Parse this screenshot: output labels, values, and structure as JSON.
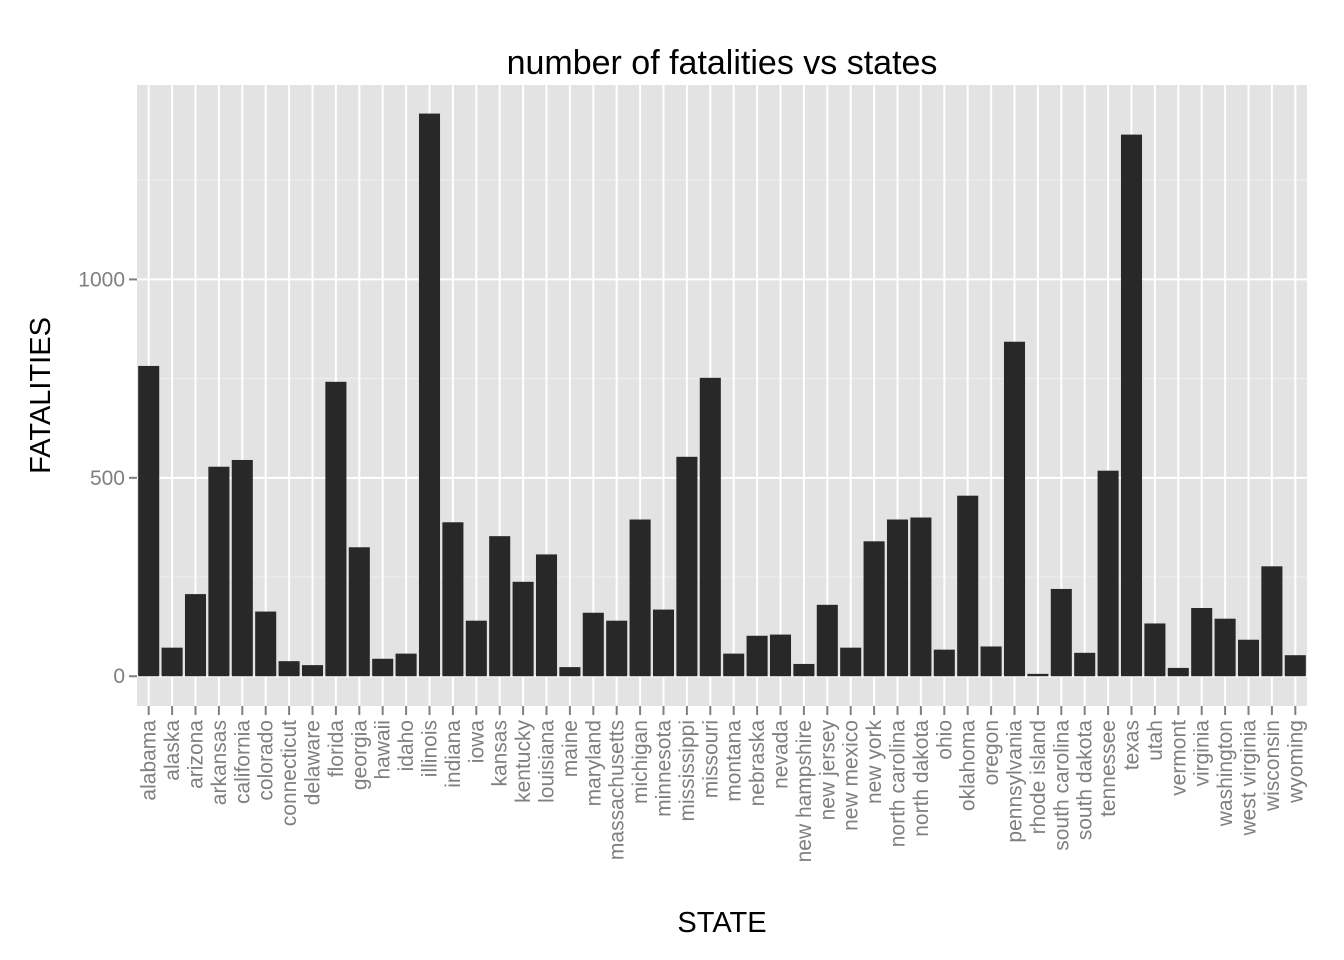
{
  "chart_data": {
    "type": "bar",
    "title": "number of fatalities vs states",
    "xlabel": "STATE",
    "ylabel": "FATALITIES",
    "ylim": [
      -75,
      1490
    ],
    "yticks": [
      0,
      500,
      1000
    ],
    "grid": true,
    "background": "#e3e3e3",
    "bar_color": "#282828",
    "categories": [
      "alabama",
      "alaska",
      "arizona",
      "arkansas",
      "california",
      "colorado",
      "connecticut",
      "delaware",
      "florida",
      "georgia",
      "hawaii",
      "idaho",
      "illinois",
      "indiana",
      "iowa",
      "kansas",
      "kentucky",
      "louisiana",
      "maine",
      "maryland",
      "massachusetts",
      "michigan",
      "minnesota",
      "mississippi",
      "missouri",
      "montana",
      "nebraska",
      "nevada",
      "new hampshire",
      "new jersey",
      "new mexico",
      "new york",
      "north carolina",
      "north dakota",
      "ohio",
      "oklahoma",
      "oregon",
      "pennsylvania",
      "rhode island",
      "south carolina",
      "south dakota",
      "tennessee",
      "texas",
      "utah",
      "vermont",
      "virginia",
      "washington",
      "west virginia",
      "wisconsin",
      "wyoming"
    ],
    "values": [
      782,
      72,
      207,
      528,
      545,
      163,
      38,
      28,
      742,
      325,
      44,
      57,
      1418,
      388,
      140,
      353,
      238,
      307,
      23,
      160,
      140,
      395,
      168,
      553,
      752,
      57,
      102,
      105,
      31,
      180,
      72,
      340,
      395,
      400,
      67,
      455,
      75,
      843,
      6,
      220,
      59,
      518,
      1365,
      133,
      21,
      172,
      145,
      92,
      277,
      53
    ]
  }
}
